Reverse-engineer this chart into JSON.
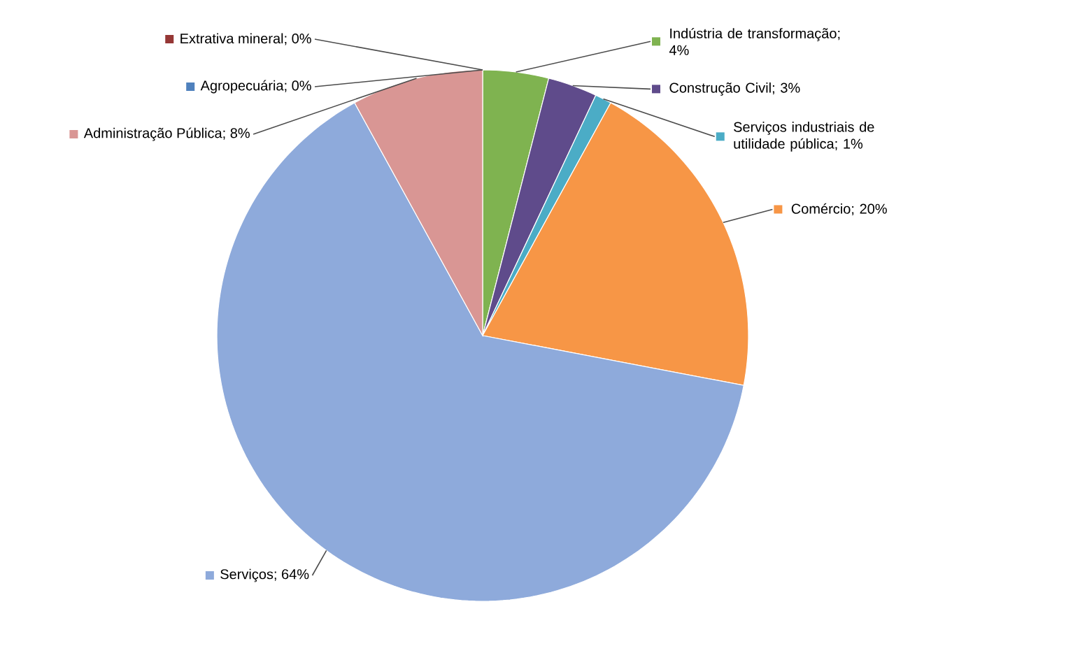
{
  "chart_data": {
    "type": "pie",
    "categories": [
      "Extrativa mineral; 0%",
      "Indústria de transformação; 4%",
      "Construção Civil; 3%",
      "Serviços industriais de utilidade pública; 1%",
      "Comércio; 20%",
      "Serviços; 64%",
      "Administração Pública; 8%",
      "Agropecuária; 0%"
    ],
    "values": [
      0,
      4,
      3,
      1,
      20,
      64,
      8,
      0
    ],
    "legend": "right",
    "colors": [
      "#953735",
      "#7fb350",
      "#5f4b8b",
      "#4bacc6",
      "#f79646",
      "#8eaadb",
      "#d99694",
      "#4f81bd"
    ]
  }
}
